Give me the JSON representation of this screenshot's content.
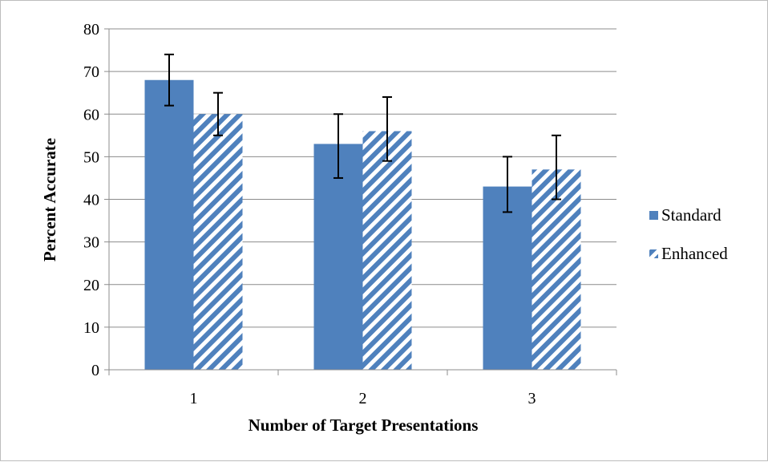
{
  "chart_data": {
    "type": "bar",
    "title": "",
    "xlabel": "Number of Target Presentations",
    "ylabel": "Percent Accurate",
    "categories": [
      "1",
      "2",
      "3"
    ],
    "ylim": [
      0,
      80
    ],
    "yticks": [
      0,
      10,
      20,
      30,
      40,
      50,
      60,
      70,
      80
    ],
    "grid": true,
    "legend_position": "right",
    "series": [
      {
        "name": "Standard",
        "values": [
          68,
          53,
          43
        ],
        "error_low": [
          62,
          45,
          37
        ],
        "error_high": [
          74,
          60,
          50
        ],
        "color": "#4f81bd",
        "pattern": "solid"
      },
      {
        "name": "Enhanced",
        "values": [
          60,
          56,
          47
        ],
        "error_low": [
          55,
          49,
          40
        ],
        "error_high": [
          65,
          64,
          55
        ],
        "color": "#4f81bd",
        "pattern": "diagonal-stripes"
      }
    ]
  }
}
